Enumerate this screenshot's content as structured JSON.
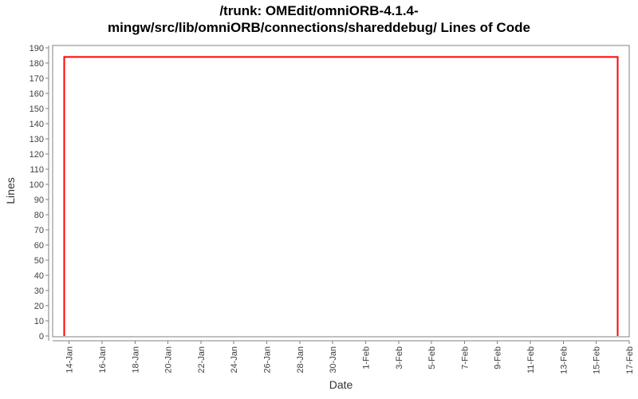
{
  "chart_data": {
    "type": "line",
    "title_lines": [
      "/trunk: OMEdit/omniORB-4.1.4-",
      "mingw/src/lib/omniORB/connections/shareddebug/ Lines of Code"
    ],
    "xlabel": "Date",
    "ylabel": "Lines",
    "x_axis": {
      "unit": "days-from-13-Jan",
      "range": [
        0,
        35
      ],
      "tick_days": [
        1,
        3,
        5,
        7,
        9,
        11,
        13,
        15,
        17,
        19,
        21,
        23,
        25,
        27,
        29,
        31,
        33,
        35
      ],
      "tick_labels": [
        "14-Jan",
        "16-Jan",
        "18-Jan",
        "20-Jan",
        "22-Jan",
        "24-Jan",
        "26-Jan",
        "28-Jan",
        "30-Jan",
        "1-Feb",
        "3-Feb",
        "5-Feb",
        "7-Feb",
        "9-Feb",
        "11-Feb",
        "13-Feb",
        "15-Feb",
        "17-Feb"
      ],
      "tick_label_rotation_deg": -90
    },
    "y_axis": {
      "min": 0,
      "max": 190,
      "step": 10
    },
    "series": [
      {
        "name": "Lines of Code",
        "color": "#ff0000",
        "points": [
          {
            "day": 0.7,
            "date": "13-Jan",
            "value": 0
          },
          {
            "day": 0.7,
            "date": "13-Jan",
            "value": 184
          },
          {
            "day": 34.3,
            "date": "16-Feb",
            "value": 184
          },
          {
            "day": 34.3,
            "date": "16-Feb",
            "value": 0
          }
        ]
      }
    ],
    "grid": false,
    "legend_position": "none",
    "colors": {
      "line": "#ff0000",
      "axis": "#808080",
      "plot_border": "#808080",
      "tick_label": "#404040",
      "title": "#000000",
      "background": "#ffffff"
    }
  }
}
